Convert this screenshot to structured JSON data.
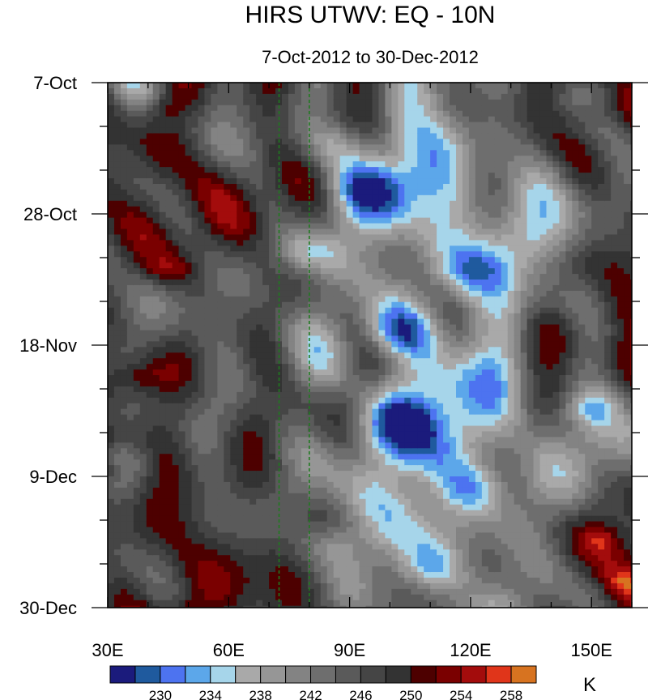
{
  "chart_data": {
    "type": "heatmap",
    "title": "HIRS UTWV: EQ - 10N",
    "subtitle": "7-Oct-2012 to 30-Dec-2012",
    "x_ticks": [
      30,
      60,
      90,
      120,
      150
    ],
    "x_tick_labels": [
      "30E",
      "60E",
      "90E",
      "120E",
      "150E"
    ],
    "xlim": [
      30,
      160
    ],
    "y_ticks": [
      "2012-10-07",
      "2012-10-28",
      "2012-11-18",
      "2012-12-09",
      "2012-12-30"
    ],
    "y_tick_labels": [
      "7-Oct",
      "28-Oct",
      "18-Nov",
      "9-Dec",
      "30-Dec"
    ],
    "ylim": [
      "2012-10-07",
      "2012-12-30"
    ],
    "reference_lines_x": [
      72.5,
      80
    ],
    "colorbar": {
      "unit": "K",
      "labels": [
        "230",
        "234",
        "238",
        "242",
        "246",
        "250",
        "254",
        "258"
      ],
      "label_levels": [
        230,
        234,
        238,
        242,
        246,
        250,
        254,
        258
      ],
      "levels": [
        228,
        230,
        232,
        234,
        236,
        238,
        240,
        242,
        244,
        246,
        248,
        250,
        252,
        254,
        256,
        258
      ],
      "colors": [
        "#1b1b7c",
        "#1f5a9e",
        "#4d73f0",
        "#5ca7ea",
        "#a6d5ea",
        "#a9a9a9",
        "#969696",
        "#838383",
        "#6e6e6e",
        "#5a5a5a",
        "#454545",
        "#333333",
        "#4d0000",
        "#7a0000",
        "#a30c0c",
        "#e0351a",
        "#d77320"
      ]
    },
    "grid": false
  }
}
